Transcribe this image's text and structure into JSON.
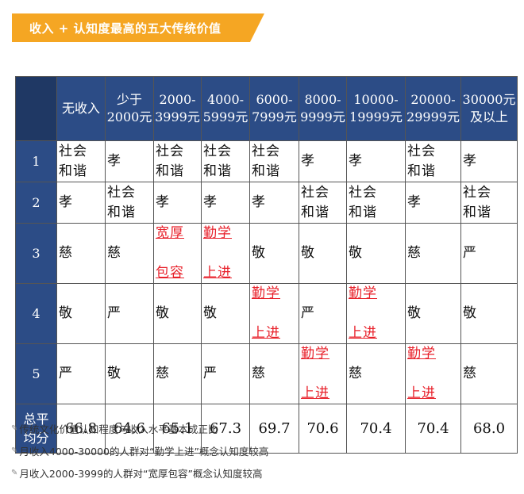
{
  "title": "收入 + 认知度最高的五大传统价值",
  "colors": {
    "accent": "#f5a623",
    "header": "#2c4c86",
    "corner": "#1f3864",
    "highlight": "#e8202a"
  },
  "table": {
    "columns": [
      "无收入",
      "少于 2000元",
      "2000- 3999元",
      "4000- 5999元",
      "6000- 7999元",
      "8000- 9999元",
      "10000- 19999元",
      "20000- 29999元",
      "30000元 及以上"
    ],
    "rows": [
      {
        "rank": "1",
        "cells": [
          {
            "l1": "社会",
            "l2": "和谐",
            "red": false
          },
          {
            "l1": "孝",
            "l2": "",
            "red": false
          },
          {
            "l1": "社会",
            "l2": "和谐",
            "red": false
          },
          {
            "l1": "社会",
            "l2": "和谐",
            "red": false
          },
          {
            "l1": "社会",
            "l2": "和谐",
            "red": false
          },
          {
            "l1": "孝",
            "l2": "",
            "red": false
          },
          {
            "l1": "孝",
            "l2": "",
            "red": false
          },
          {
            "l1": "社会",
            "l2": "和谐",
            "red": false
          },
          {
            "l1": "孝",
            "l2": "",
            "red": false
          }
        ]
      },
      {
        "rank": "2",
        "cells": [
          {
            "l1": "孝",
            "l2": "",
            "red": false
          },
          {
            "l1": "社会",
            "l2": "和谐",
            "red": false
          },
          {
            "l1": "孝",
            "l2": "",
            "red": false
          },
          {
            "l1": "孝",
            "l2": "",
            "red": false
          },
          {
            "l1": "孝",
            "l2": "",
            "red": false
          },
          {
            "l1": "社会",
            "l2": "和谐",
            "red": false
          },
          {
            "l1": "社会",
            "l2": "和谐",
            "red": false
          },
          {
            "l1": "孝",
            "l2": "",
            "red": false
          },
          {
            "l1": "社会",
            "l2": "和谐",
            "red": false
          }
        ]
      },
      {
        "rank": "3",
        "cells": [
          {
            "l1": "慈",
            "l2": "",
            "red": false
          },
          {
            "l1": "慈",
            "l2": "",
            "red": false
          },
          {
            "l1": "宽厚",
            "l2": "包容",
            "red": true
          },
          {
            "l1": "勤学",
            "l2": "上进",
            "red": true
          },
          {
            "l1": "敬",
            "l2": "",
            "red": false
          },
          {
            "l1": "敬",
            "l2": "",
            "red": false
          },
          {
            "l1": "敬",
            "l2": "",
            "red": false
          },
          {
            "l1": "慈",
            "l2": "",
            "red": false
          },
          {
            "l1": "严",
            "l2": "",
            "red": false
          }
        ]
      },
      {
        "rank": "4",
        "cells": [
          {
            "l1": "敬",
            "l2": "",
            "red": false
          },
          {
            "l1": "严",
            "l2": "",
            "red": false
          },
          {
            "l1": "敬",
            "l2": "",
            "red": false
          },
          {
            "l1": "敬",
            "l2": "",
            "red": false
          },
          {
            "l1": "勤学",
            "l2": "上进",
            "red": true
          },
          {
            "l1": "严",
            "l2": "",
            "red": false
          },
          {
            "l1": "勤学",
            "l2": "上进",
            "red": true
          },
          {
            "l1": "敬",
            "l2": "",
            "red": false
          },
          {
            "l1": "敬",
            "l2": "",
            "red": false
          }
        ]
      },
      {
        "rank": "5",
        "cells": [
          {
            "l1": "严",
            "l2": "",
            "red": false
          },
          {
            "l1": "敬",
            "l2": "",
            "red": false
          },
          {
            "l1": "慈",
            "l2": "",
            "red": false
          },
          {
            "l1": "严",
            "l2": "",
            "red": false
          },
          {
            "l1": "慈",
            "l2": "",
            "red": false
          },
          {
            "l1": "勤学",
            "l2": "上进",
            "red": true
          },
          {
            "l1": "慈",
            "l2": "",
            "red": false
          },
          {
            "l1": "勤学",
            "l2": "上进",
            "red": true
          },
          {
            "l1": "慈",
            "l2": "",
            "red": false
          }
        ]
      }
    ],
    "avg_label_l1": "总平",
    "avg_label_l2": "均分",
    "averages": [
      "66.8",
      "64.6",
      "65.1",
      "67.3",
      "69.7",
      "70.6",
      "70.4",
      "70.4",
      "68.0"
    ]
  },
  "notes": [
    "传统文化价值认知程度与收入水平基本成正比",
    "月收入4000-30000的人群对“勤学上进”概念认知度较高",
    "月收入2000-3999的人群对“宽厚包容”概念认知度较高"
  ]
}
